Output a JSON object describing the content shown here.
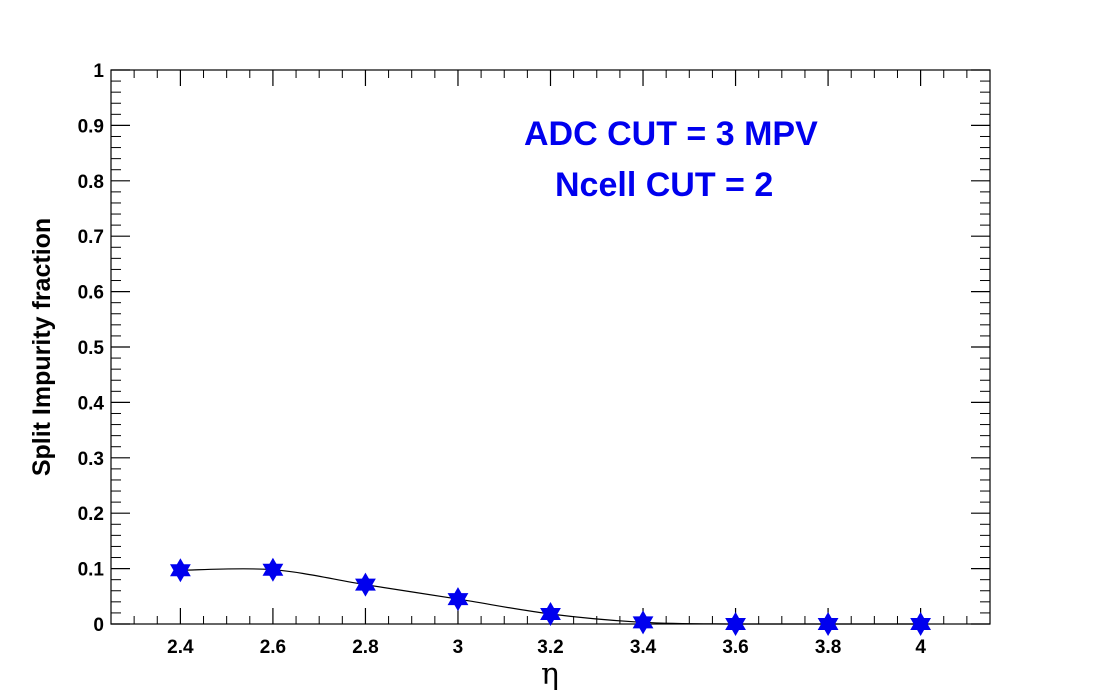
{
  "chart_data": {
    "type": "line",
    "xlabel": "η",
    "ylabel": "Split Impurity fraction",
    "xlim": [
      2.25,
      4.15
    ],
    "ylim": [
      0,
      1
    ],
    "x_ticks": [
      "2.4",
      "2.6",
      "2.8",
      "3",
      "3.2",
      "3.4",
      "3.6",
      "3.8",
      "4"
    ],
    "y_ticks": [
      "0",
      "0.1",
      "0.2",
      "0.3",
      "0.4",
      "0.5",
      "0.6",
      "0.7",
      "0.8",
      "0.9",
      "1"
    ],
    "series": [
      {
        "x": [
          2.4,
          2.6,
          2.8,
          3.0,
          3.2,
          3.4,
          3.6,
          3.8,
          4.0
        ],
        "y": [
          0.097,
          0.098,
          0.071,
          0.045,
          0.018,
          0.003,
          0.0,
          0.0,
          0.0
        ],
        "marker": "star",
        "marker_color": "#0000ee",
        "line_color": "#000000",
        "smooth": true
      }
    ],
    "annotations": [
      "ADC CUT = 3 MPV",
      "Ncell CUT = 2"
    ],
    "annotation_color": "#0000ee",
    "grid": false,
    "legend": "none"
  }
}
